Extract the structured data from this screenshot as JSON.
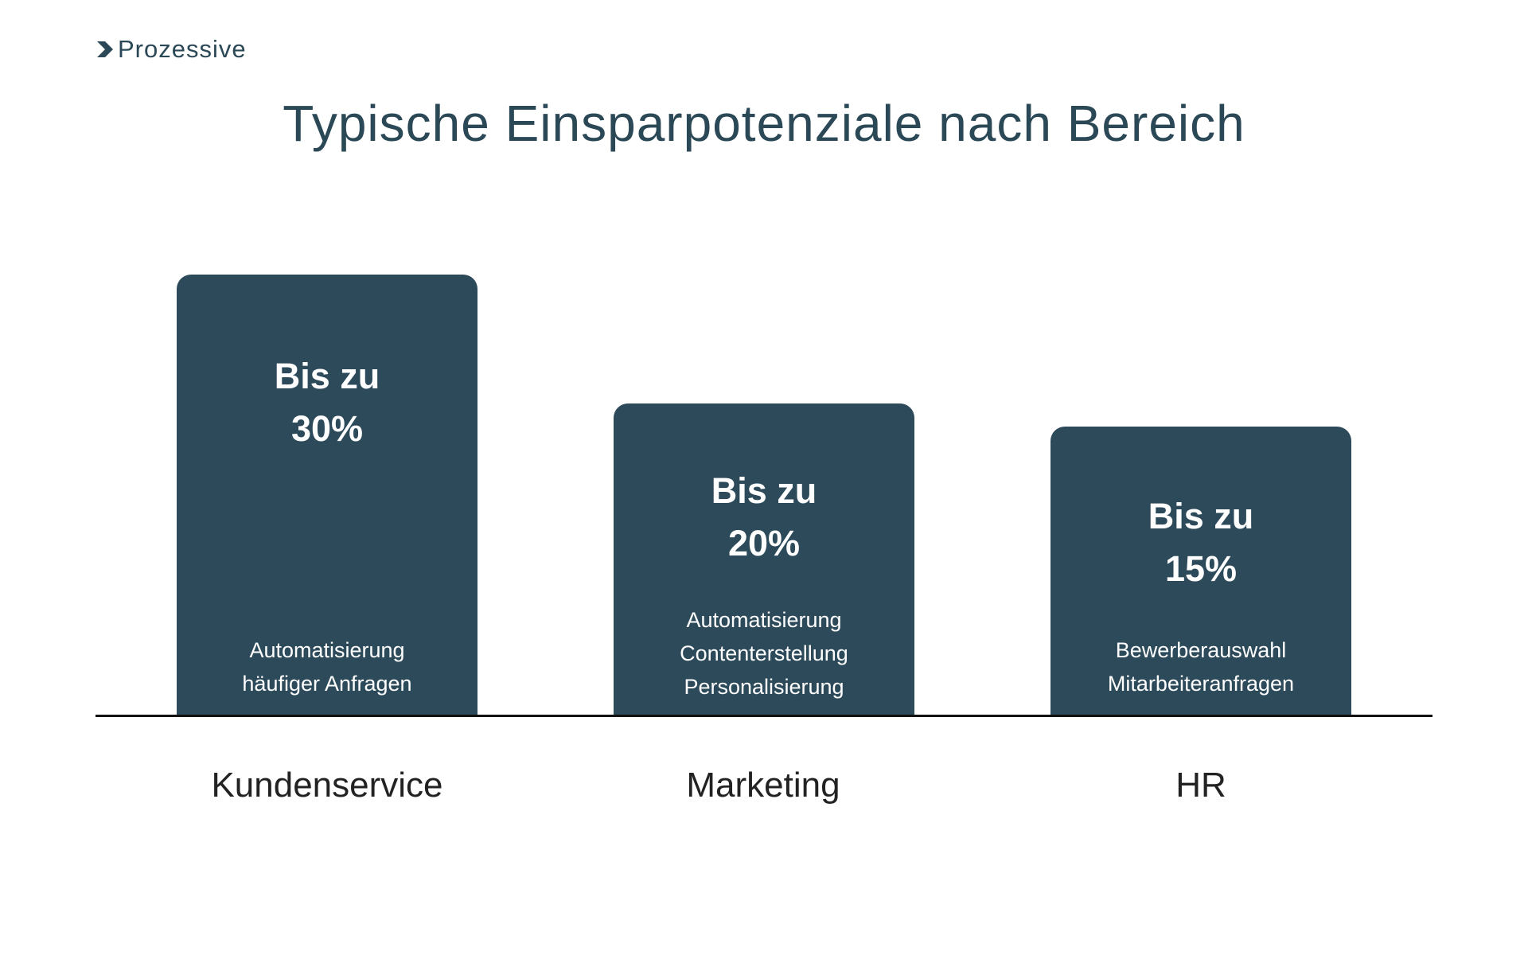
{
  "logo": {
    "text": "Prozessive"
  },
  "chart_data": {
    "type": "bar",
    "title": "Typische Einsparpotenziale nach Bereich",
    "categories": [
      "Kundenservice",
      "Marketing",
      "HR"
    ],
    "values": [
      30,
      20,
      15
    ],
    "unit": "%",
    "bars": [
      {
        "prefix": "Bis zu",
        "value_label": "30%",
        "description": [
          "Automatisierung",
          "häufiger Anfragen"
        ]
      },
      {
        "prefix": "Bis zu",
        "value_label": "20%",
        "description": [
          "Automatisierung",
          "Contenterstellung",
          "Personalisierung"
        ]
      },
      {
        "prefix": "Bis zu",
        "value_label": "15%",
        "description": [
          "Bewerberauswahl",
          "Mitarbeiteranfragen"
        ]
      }
    ],
    "colors": {
      "bar": "#2c4a5a",
      "title": "#2b4857"
    },
    "grid": false
  }
}
